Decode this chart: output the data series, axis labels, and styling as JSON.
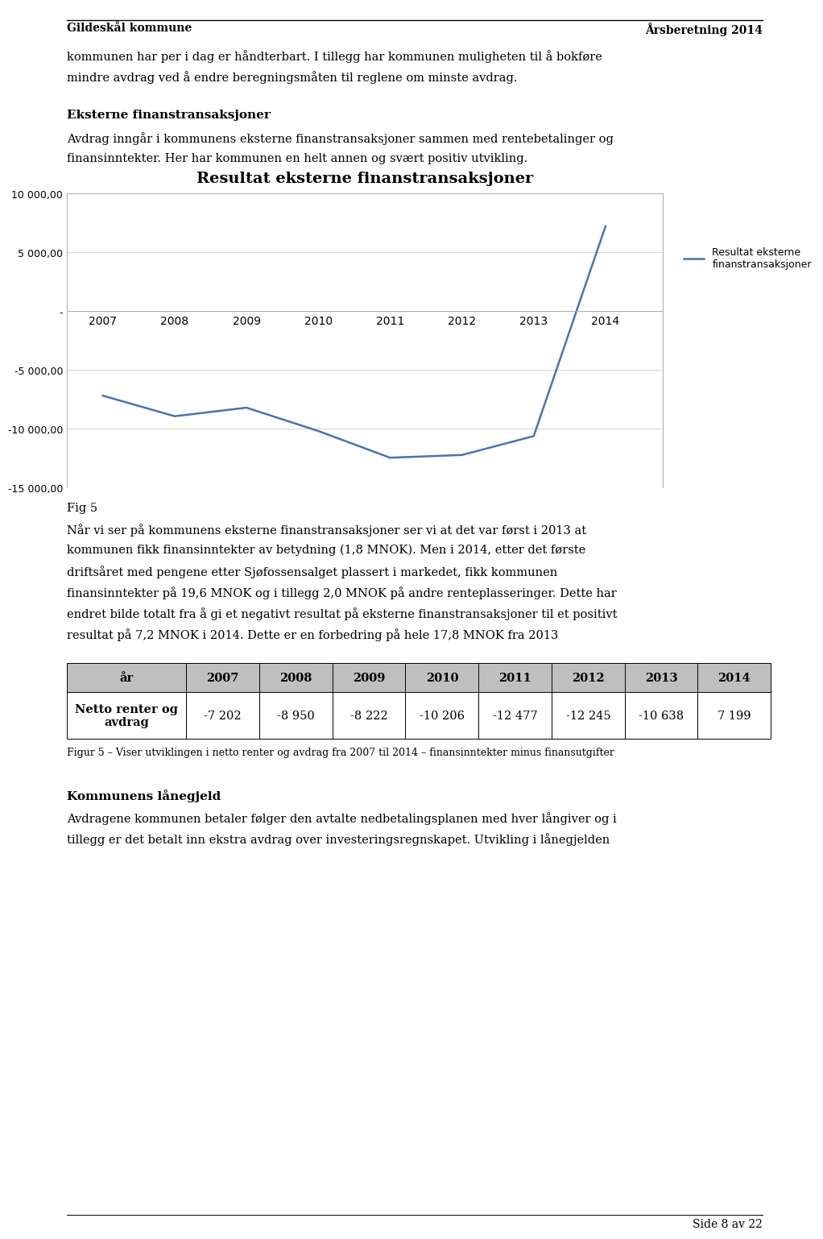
{
  "page_header_left": "Gildeskål kommune",
  "page_header_right": "Årsberetning 2014",
  "page_footer": "Side 8 av 22",
  "para1_lines": [
    "kommunen har per i dag er håndterbart. I tillegg har kommunen muligheten til å bokføre",
    "mindre avdrag ved å endre beregningsmåten til reglene om minste avdrag."
  ],
  "section_title": "Eksterne finanstransaksjoner",
  "para2_lines": [
    "Avdrag inngår i kommunens eksterne finanstransaksjoner sammen med rentebetalinger og",
    "finansinntekter. Her har kommunen en helt annen og svært positiv utvikling."
  ],
  "chart_title": "Resultat eksterne finanstransaksjoner",
  "years": [
    2007,
    2008,
    2009,
    2010,
    2011,
    2012,
    2013,
    2014
  ],
  "values": [
    -7202,
    -8950,
    -8222,
    -10206,
    -12477,
    -12245,
    -10638,
    7199
  ],
  "line_color": "#4472C4",
  "legend_label": "Resultat eksterne\nfinanstransaksjoner",
  "ylim": [
    -15000,
    10000
  ],
  "yticks": [
    -15000,
    -10000,
    -5000,
    0,
    5000,
    10000
  ],
  "ytick_labels": [
    "-15 000,00",
    "-10 000,00",
    "-5 000,00",
    "-",
    "5 000,00",
    "10 000,00"
  ],
  "fig5_label": "Fig 5",
  "para3_lines": [
    "Når vi ser på kommunens eksterne finanstransaksjoner ser vi at det var først i 2013 at",
    "kommunen fikk finansinntekter av betydning (1,8 MNOK). Men i 2014, etter det første",
    "driftsåret med pengene etter Sjøfossensalget plassert i markedet, fikk kommunen",
    "finansinntekter på 19,6 MNOK og i tillegg 2,0 MNOK på andre renteplasseringer. Dette har",
    "endret bilde totalt fra å gi et negativt resultat på eksterne finanstransaksjoner til et positivt",
    "resultat på 7,2 MNOK i 2014. Dette er en forbedring på hele 17,8 MNOK fra 2013"
  ],
  "table_header_bg": "#BFBFBF",
  "table_col0_header": "år",
  "table_years": [
    "2007",
    "2008",
    "2009",
    "2010",
    "2011",
    "2012",
    "2013",
    "2014"
  ],
  "table_row_label": "Netto renter og\navdrag",
  "table_values": [
    "-7 202",
    "-8 950",
    "-8 222",
    "-10 206",
    "-12 477",
    "-12 245",
    "-10 638",
    "7 199"
  ],
  "fig5_caption": "Figur 5 – Viser utviklingen i netto renter og avdrag fra 2007 til 2014 – finansinntekter minus finansutgifter",
  "section2_title": "Kommunens lånegjeld",
  "para4_lines": [
    "Avdragene kommunen betaler følger den avtalte nedbetalingsplanen med hver långiver og i",
    "tillegg er det betalt inn ekstra avdrag over investeringsregnskapet. Utvikling i lånegjelden"
  ]
}
